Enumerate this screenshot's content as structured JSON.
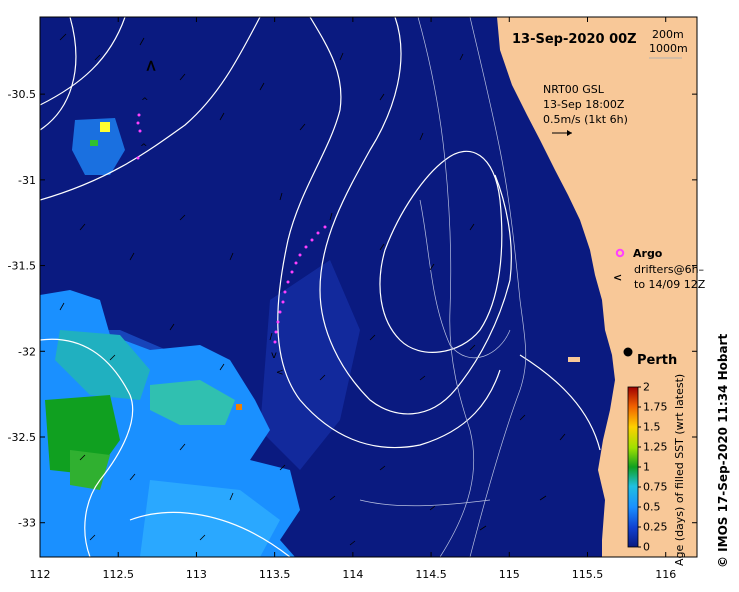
{
  "map": {
    "title": "13-Sep-2020 00Z",
    "depth_legend": [
      "200m",
      "1000m"
    ],
    "product": [
      "NRT00 GSL",
      "13-Sep 18:00Z",
      "0.5m/s (1kt 6h)"
    ],
    "argo_label": "Argo",
    "drifters_label": [
      "drifters@6h–",
      "to 14/09 12Z"
    ],
    "city": "Perth",
    "credit": "©  IMOS 17-Sep-2020 11:34 Hobart",
    "colorbar_label": "Age (days) of filled SST (wrt latest)",
    "colorbar_ticks": [
      "0",
      "0.25",
      "0.5",
      "0.75",
      "1",
      "1.25",
      "1.5",
      "1.75",
      "2"
    ],
    "colorbar_range": [
      0,
      2
    ],
    "lon_ticks": [
      "112",
      "112.5",
      "113",
      "113.5",
      "114",
      "114.5",
      "115",
      "115.5",
      "116"
    ],
    "lat_ticks": [
      "-30.5",
      "-31",
      "-31.5",
      "-32",
      "-32.5",
      "-33"
    ],
    "lon_range": [
      112,
      116.2
    ],
    "lat_range": [
      -33.2,
      -30.05
    ],
    "colors": {
      "ocean_age0": "#0a1a80",
      "land": "#f8c898",
      "contour": "#ffffff",
      "argo": "#ff40ff",
      "drifter": "#ff40ff",
      "age_low_blue": "#1a90ff",
      "age_green": "#10a020"
    }
  }
}
